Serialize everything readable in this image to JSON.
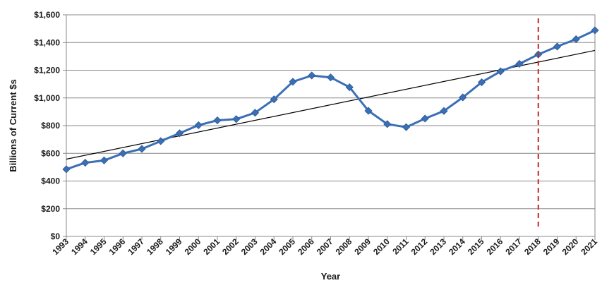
{
  "chart_data": {
    "type": "line",
    "xlabel": "Year",
    "ylabel": "Billions of Current $s",
    "ylim": [
      0,
      1600
    ],
    "y_ticks": [
      0,
      200,
      400,
      600,
      800,
      1000,
      1200,
      1400,
      1600
    ],
    "y_tick_labels": [
      "$0",
      "$200",
      "$400",
      "$600",
      "$800",
      "$1,000",
      "$1,200",
      "$1,400",
      "$1,600"
    ],
    "grid": "horizontal",
    "categories": [
      "1993",
      "1994",
      "1995",
      "1996",
      "1997",
      "1998",
      "1999",
      "2000",
      "2001",
      "2002",
      "2003",
      "2004",
      "2005",
      "2006",
      "2007",
      "2008",
      "2009",
      "2010",
      "2011",
      "2012",
      "2013",
      "2014",
      "2015",
      "2016",
      "2017",
      "2018",
      "2019",
      "2020",
      "2021"
    ],
    "series": [
      {
        "values": [
          485,
          532,
          549,
          600,
          632,
          688,
          745,
          803,
          838,
          847,
          893,
          990,
          1117,
          1162,
          1148,
          1077,
          907,
          811,
          789,
          851,
          906,
          1004,
          1113,
          1192,
          1246,
          1314,
          1371,
          1424,
          1488
        ],
        "color": "#3a6fb5",
        "marker": "diamond"
      }
    ],
    "trendline": {
      "type": "linear",
      "start": 558,
      "end": 1343,
      "color": "#000000"
    },
    "marker_line": {
      "x": "2018",
      "color": "#c8272d",
      "style": "dashed"
    }
  }
}
